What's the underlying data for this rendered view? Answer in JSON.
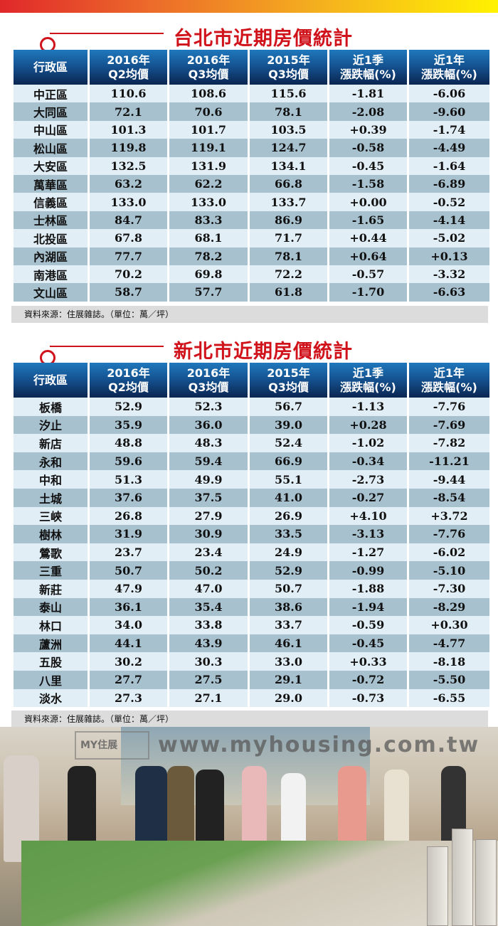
{
  "colors": {
    "title_red": "#d0121b",
    "header_blue": "#14508d",
    "row_light": "#e2eef6",
    "row_dark": "#a8c1cf"
  },
  "headers": [
    "行政區",
    "2016年\nQ2均價",
    "2016年\nQ3均價",
    "2015年\nQ3均價",
    "近1季\n漲跌幅(%)",
    "近1年\n漲跌幅(%)"
  ],
  "taipei": {
    "title": "台北市近期房價統計",
    "rows": [
      [
        "中正區",
        "110.6",
        "108.6",
        "115.6",
        "-1.81",
        "-6.06"
      ],
      [
        "大同區",
        "72.1",
        "70.6",
        "78.1",
        "-2.08",
        "-9.60"
      ],
      [
        "中山區",
        "101.3",
        "101.7",
        "103.5",
        "+0.39",
        "-1.74"
      ],
      [
        "松山區",
        "119.8",
        "119.1",
        "124.7",
        "-0.58",
        "-4.49"
      ],
      [
        "大安區",
        "132.5",
        "131.9",
        "134.1",
        "-0.45",
        "-1.64"
      ],
      [
        "萬華區",
        "63.2",
        "62.2",
        "66.8",
        "-1.58",
        "-6.89"
      ],
      [
        "信義區",
        "133.0",
        "133.0",
        "133.7",
        "+0.00",
        "-0.52"
      ],
      [
        "士林區",
        "84.7",
        "83.3",
        "86.9",
        "-1.65",
        "-4.14"
      ],
      [
        "北投區",
        "67.8",
        "68.1",
        "71.7",
        "+0.44",
        "-5.02"
      ],
      [
        "內湖區",
        "77.7",
        "78.2",
        "78.1",
        "+0.64",
        "+0.13"
      ],
      [
        "南港區",
        "70.2",
        "69.8",
        "72.2",
        "-0.57",
        "-3.32"
      ],
      [
        "文山區",
        "58.7",
        "57.7",
        "61.8",
        "-1.70",
        "-6.63"
      ]
    ],
    "footer": "資料來源：住展雜誌。（單位：萬／坪）"
  },
  "newtaipei": {
    "title": "新北市近期房價統計",
    "rows": [
      [
        "板橋",
        "52.9",
        "52.3",
        "56.7",
        "-1.13",
        "-7.76"
      ],
      [
        "汐止",
        "35.9",
        "36.0",
        "39.0",
        "+0.28",
        "-7.69"
      ],
      [
        "新店",
        "48.8",
        "48.3",
        "52.4",
        "-1.02",
        "-7.82"
      ],
      [
        "永和",
        "59.6",
        "59.4",
        "66.9",
        "-0.34",
        "-11.21"
      ],
      [
        "中和",
        "51.3",
        "49.9",
        "55.1",
        "-2.73",
        "-9.44"
      ],
      [
        "土城",
        "37.6",
        "37.5",
        "41.0",
        "-0.27",
        "-8.54"
      ],
      [
        "三峽",
        "26.8",
        "27.9",
        "26.9",
        "+4.10",
        "+3.72"
      ],
      [
        "樹林",
        "31.9",
        "30.9",
        "33.5",
        "-3.13",
        "-7.76"
      ],
      [
        "鶯歌",
        "23.7",
        "23.4",
        "24.9",
        "-1.27",
        "-6.02"
      ],
      [
        "三重",
        "50.7",
        "50.2",
        "52.9",
        "-0.99",
        "-5.10"
      ],
      [
        "新莊",
        "47.9",
        "47.0",
        "50.7",
        "-1.88",
        "-7.30"
      ],
      [
        "泰山",
        "36.1",
        "35.4",
        "38.6",
        "-1.94",
        "-8.29"
      ],
      [
        "林口",
        "34.0",
        "33.8",
        "33.7",
        "-0.59",
        "+0.30"
      ],
      [
        "蘆洲",
        "44.1",
        "43.9",
        "46.1",
        "-0.45",
        "-4.77"
      ],
      [
        "五股",
        "30.2",
        "30.3",
        "33.0",
        "+0.33",
        "-8.18"
      ],
      [
        "八里",
        "27.7",
        "27.5",
        "29.1",
        "-0.72",
        "-5.50"
      ],
      [
        "淡水",
        "27.3",
        "27.1",
        "29.0",
        "-0.73",
        "-6.55"
      ]
    ],
    "footer": "資料來源：住展雜誌。（單位：萬／坪）"
  },
  "watermark": {
    "logo": "MY住展",
    "url": "www.myhousing.com.tw"
  }
}
